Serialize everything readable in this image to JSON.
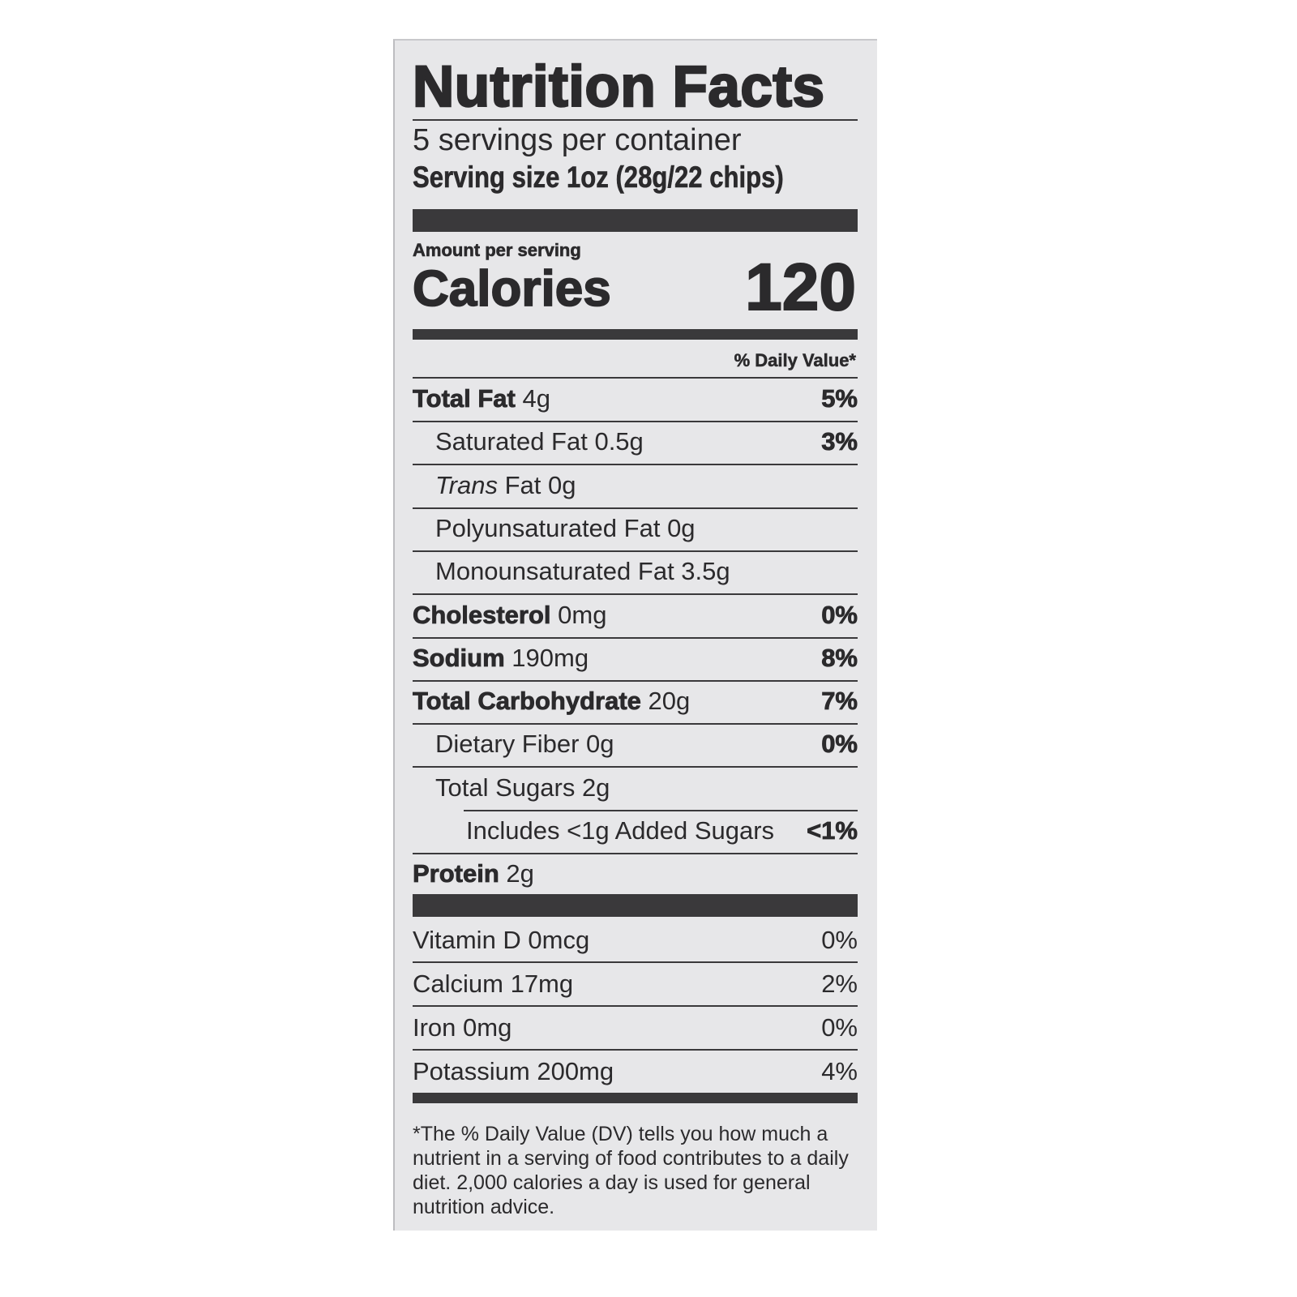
{
  "title": "Nutrition Facts",
  "servings_per_container": "5 servings per container",
  "serving_size": "Serving size 1oz (28g/22 chips)",
  "amount_per_serving": "Amount per serving",
  "calories_label": "Calories",
  "calories_value": "120",
  "daily_value_header": "% Daily Value*",
  "nutrients": [
    {
      "name": "Total Fat",
      "amount": "4g",
      "dv": "5%",
      "bold": true,
      "indent": 0,
      "dv_bold": true
    },
    {
      "name": "Saturated Fat",
      "amount": "0.5g",
      "dv": "3%",
      "bold": false,
      "indent": 1,
      "dv_bold": true
    },
    {
      "name": "Trans",
      "name_suffix": "Fat",
      "amount": "0g",
      "dv": "",
      "bold": false,
      "italic": true,
      "indent": 1
    },
    {
      "name": "Polyunsaturated Fat",
      "amount": "0g",
      "dv": "",
      "bold": false,
      "indent": 1
    },
    {
      "name": "Monounsaturated Fat",
      "amount": "3.5g",
      "dv": "",
      "bold": false,
      "indent": 1
    },
    {
      "name": "Cholesterol",
      "amount": "0mg",
      "dv": "0%",
      "bold": true,
      "indent": 0,
      "dv_bold": true
    },
    {
      "name": "Sodium",
      "amount": "190mg",
      "dv": "8%",
      "bold": true,
      "indent": 0,
      "dv_bold": true
    },
    {
      "name": "Total Carbohydrate",
      "amount": "20g",
      "dv": "7%",
      "bold": true,
      "indent": 0,
      "dv_bold": true
    },
    {
      "name": "Dietary Fiber",
      "amount": "0g",
      "dv": "0%",
      "bold": false,
      "indent": 1,
      "dv_bold": true
    },
    {
      "name": "Total Sugars",
      "amount": "2g",
      "dv": "",
      "bold": false,
      "indent": 1
    },
    {
      "name": "Includes <1g Added Sugars",
      "amount": "",
      "dv": "<1%",
      "bold": false,
      "indent": 2,
      "dv_bold": true
    },
    {
      "name": "Protein",
      "amount": "2g",
      "dv": "",
      "bold": true,
      "indent": 0
    }
  ],
  "vitamins": [
    {
      "name": "Vitamin D 0mcg",
      "dv": "0%"
    },
    {
      "name": "Calcium 17mg",
      "dv": "2%"
    },
    {
      "name": "Iron 0mg",
      "dv": "0%"
    },
    {
      "name": "Potassium 200mg",
      "dv": "4%"
    }
  ],
  "footnote": "*The % Daily Value (DV) tells you how much a nutrient in a serving of food contributes to a daily diet. 2,000 calories a day is used for general nutrition advice.",
  "colors": {
    "background": "#e7e7e9",
    "ink": "#2b2a2c"
  }
}
